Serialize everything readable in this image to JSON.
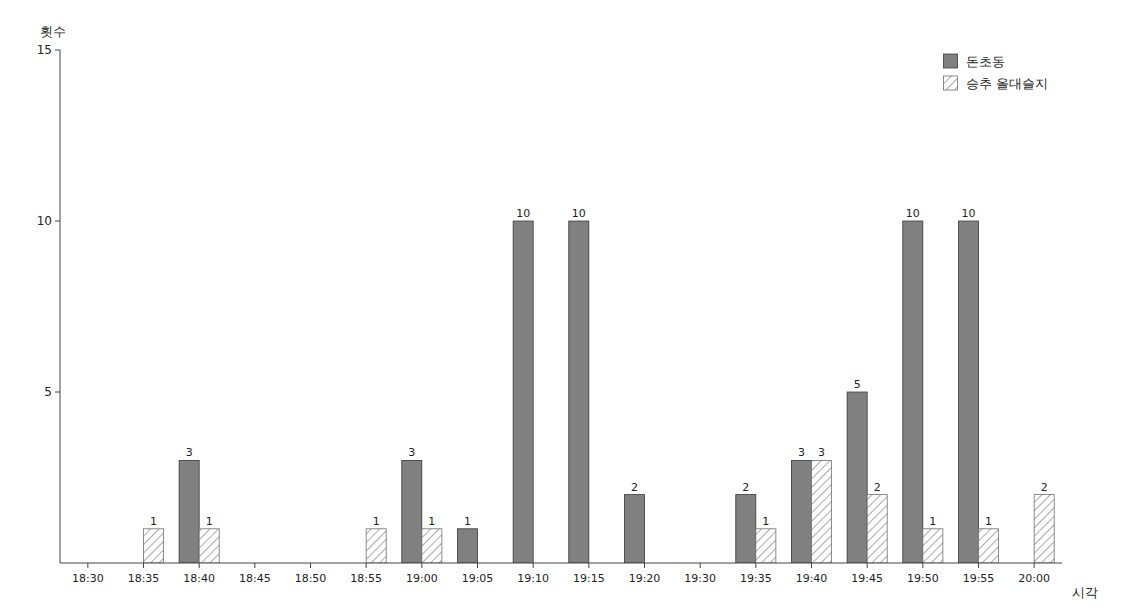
{
  "chart_data": {
    "type": "bar",
    "x_label": "시각",
    "y_label": "횟수",
    "categories": [
      "18:30",
      "18:35",
      "18:40",
      "18:45",
      "18:50",
      "18:55",
      "19:00",
      "19:05",
      "19:10",
      "19:15",
      "19:20",
      "19:30",
      "19:35",
      "19:40",
      "19:45",
      "19:50",
      "19:55",
      "20:00"
    ],
    "series": [
      {
        "name": "돈초동",
        "color": "#808080",
        "values": [
          0,
          0,
          3,
          0,
          0,
          0,
          3,
          1,
          10,
          10,
          2,
          0,
          2,
          3,
          5,
          10,
          10,
          0
        ]
      },
      {
        "name": "승추 올대슬지",
        "color": "#ffffff",
        "values": [
          0,
          1,
          1,
          0,
          0,
          1,
          1,
          0,
          0,
          0,
          0,
          0,
          1,
          3,
          2,
          1,
          1,
          2
        ]
      }
    ],
    "ylim": [
      0,
      15
    ],
    "yticks": [
      5,
      10,
      15
    ],
    "grid": false,
    "legend": "upper right",
    "data_labels": true
  }
}
